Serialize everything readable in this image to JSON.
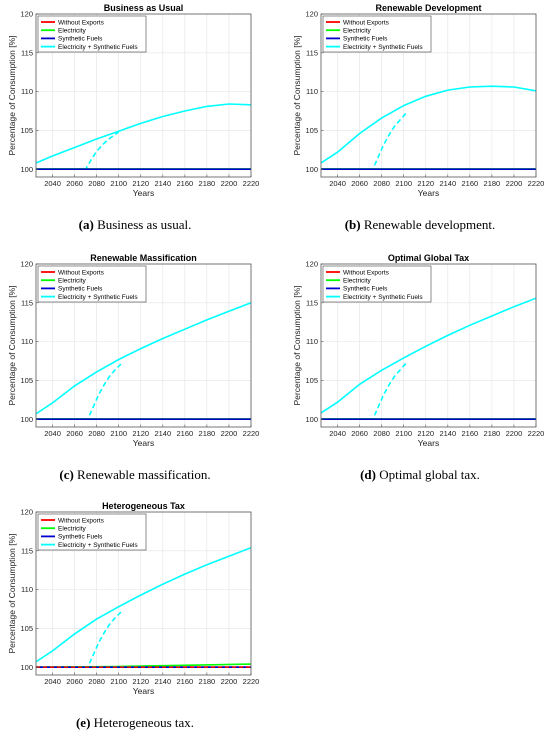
{
  "chart_data": [
    {
      "type": "line",
      "title": "Business as Usual",
      "xlabel": "Years",
      "ylabel": "Percentage of Consumption [%]",
      "xlim": [
        2025,
        2220
      ],
      "ylim": [
        99,
        120
      ],
      "xticks": [
        2040,
        2060,
        2080,
        2100,
        2120,
        2140,
        2160,
        2180,
        2200,
        2220
      ],
      "yticks": [
        100,
        105,
        110,
        115,
        120
      ],
      "legend_position": "top-left",
      "grid": true,
      "series": [
        {
          "name": "Without Exports",
          "color": "#ff0000",
          "style": "solid",
          "x": [
            2025,
            2220
          ],
          "y": [
            100,
            100
          ]
        },
        {
          "name": "Electricity",
          "color": "#00ff00",
          "style": "solid",
          "x": [
            2025,
            2220
          ],
          "y": [
            100.05,
            100.05
          ]
        },
        {
          "name": "Synthetic Fuels",
          "color": "#0000cc",
          "style": "solid",
          "x": [
            2025,
            2220
          ],
          "y": [
            100,
            100
          ]
        },
        {
          "name": "Electricity + Synthetic Fuels",
          "color": "#00ffff",
          "style": "solid",
          "x": [
            2025,
            2040,
            2060,
            2080,
            2100,
            2120,
            2140,
            2160,
            2180,
            2200,
            2220
          ],
          "y": [
            100.8,
            101.7,
            102.8,
            103.9,
            104.9,
            105.9,
            106.8,
            107.5,
            108.1,
            108.4,
            108.3
          ]
        }
      ],
      "dashed": [
        {
          "color": "#00ffff",
          "x": [
            2025,
            2070,
            2075,
            2080,
            2085,
            2090,
            2095,
            2100
          ],
          "y": [
            100,
            100,
            101.2,
            102.3,
            103.1,
            103.8,
            104.3,
            104.8
          ]
        }
      ],
      "caption_letter": "(a)",
      "caption_text": " Business as usual."
    },
    {
      "type": "line",
      "title": "Renewable Development",
      "xlabel": "Years",
      "ylabel": "Percentage of Consumption [%]",
      "xlim": [
        2025,
        2220
      ],
      "ylim": [
        99,
        120
      ],
      "xticks": [
        2040,
        2060,
        2080,
        2100,
        2120,
        2140,
        2160,
        2180,
        2200,
        2220
      ],
      "yticks": [
        100,
        105,
        110,
        115,
        120
      ],
      "legend_position": "top-left",
      "grid": true,
      "series": [
        {
          "name": "Without Exports",
          "color": "#ff0000",
          "style": "solid",
          "x": [
            2025,
            2220
          ],
          "y": [
            100,
            100
          ]
        },
        {
          "name": "Electricity",
          "color": "#00ff00",
          "style": "solid",
          "x": [
            2025,
            2220
          ],
          "y": [
            100.05,
            100.05
          ]
        },
        {
          "name": "Synthetic Fuels",
          "color": "#0000cc",
          "style": "solid",
          "x": [
            2025,
            2220
          ],
          "y": [
            100,
            100
          ]
        },
        {
          "name": "Electricity + Synthetic Fuels",
          "color": "#00ffff",
          "style": "solid",
          "x": [
            2025,
            2040,
            2060,
            2080,
            2100,
            2120,
            2140,
            2160,
            2180,
            2200,
            2220
          ],
          "y": [
            100.8,
            102.2,
            104.6,
            106.6,
            108.2,
            109.4,
            110.2,
            110.6,
            110.7,
            110.6,
            110.1
          ]
        }
      ],
      "dashed": [
        {
          "color": "#00ffff",
          "x": [
            2025,
            2072,
            2077,
            2082,
            2087,
            2092,
            2097,
            2102
          ],
          "y": [
            100,
            100,
            101.6,
            103.2,
            104.5,
            105.6,
            106.4,
            107.2
          ]
        }
      ],
      "caption_letter": "(b)",
      "caption_text": " Renewable development."
    },
    {
      "type": "line",
      "title": "Renewable Massification",
      "xlabel": "Years",
      "ylabel": "Percentage of Consumption [%]",
      "xlim": [
        2025,
        2220
      ],
      "ylim": [
        99,
        120
      ],
      "xticks": [
        2040,
        2060,
        2080,
        2100,
        2120,
        2140,
        2160,
        2180,
        2200,
        2220
      ],
      "yticks": [
        100,
        105,
        110,
        115,
        120
      ],
      "legend_position": "top-left",
      "grid": true,
      "series": [
        {
          "name": "Without Exports",
          "color": "#ff0000",
          "style": "solid",
          "x": [
            2025,
            2220
          ],
          "y": [
            100,
            100
          ]
        },
        {
          "name": "Electricity",
          "color": "#00ff00",
          "style": "solid",
          "x": [
            2025,
            2220
          ],
          "y": [
            100.05,
            100.05
          ]
        },
        {
          "name": "Synthetic Fuels",
          "color": "#0000cc",
          "style": "solid",
          "x": [
            2025,
            2220
          ],
          "y": [
            100,
            100
          ]
        },
        {
          "name": "Electricity + Synthetic Fuels",
          "color": "#00ffff",
          "style": "solid",
          "x": [
            2025,
            2040,
            2060,
            2080,
            2100,
            2120,
            2140,
            2160,
            2180,
            2200,
            2220
          ],
          "y": [
            100.7,
            102.1,
            104.3,
            106.1,
            107.7,
            109.1,
            110.4,
            111.6,
            112.8,
            113.9,
            115.0
          ]
        }
      ],
      "dashed": [
        {
          "color": "#00ffff",
          "x": [
            2025,
            2072,
            2077,
            2082,
            2087,
            2092,
            2097,
            2102
          ],
          "y": [
            100,
            100,
            101.6,
            103.2,
            104.5,
            105.6,
            106.4,
            107.1
          ]
        }
      ],
      "caption_letter": "(c)",
      "caption_text": " Renewable massification."
    },
    {
      "type": "line",
      "title": "Optimal Global Tax",
      "xlabel": "Years",
      "ylabel": "Percentage of Consumption [%]",
      "xlim": [
        2025,
        2220
      ],
      "ylim": [
        99,
        120
      ],
      "xticks": [
        2040,
        2060,
        2080,
        2100,
        2120,
        2140,
        2160,
        2180,
        2200,
        2220
      ],
      "yticks": [
        100,
        105,
        110,
        115,
        120
      ],
      "legend_position": "top-left",
      "grid": true,
      "series": [
        {
          "name": "Without Exports",
          "color": "#ff0000",
          "style": "solid",
          "x": [
            2025,
            2220
          ],
          "y": [
            100,
            100
          ]
        },
        {
          "name": "Electricity",
          "color": "#00ff00",
          "style": "solid",
          "x": [
            2025,
            2220
          ],
          "y": [
            100.05,
            100.05
          ]
        },
        {
          "name": "Synthetic Fuels",
          "color": "#0000cc",
          "style": "solid",
          "x": [
            2025,
            2220
          ],
          "y": [
            100,
            100
          ]
        },
        {
          "name": "Electricity + Synthetic Fuels",
          "color": "#00ffff",
          "style": "solid",
          "x": [
            2025,
            2040,
            2060,
            2080,
            2100,
            2120,
            2140,
            2160,
            2180,
            2200,
            2220
          ],
          "y": [
            100.8,
            102.2,
            104.5,
            106.3,
            107.9,
            109.4,
            110.8,
            112.1,
            113.3,
            114.5,
            115.6
          ]
        }
      ],
      "dashed": [
        {
          "color": "#00ffff",
          "x": [
            2025,
            2072,
            2077,
            2082,
            2087,
            2092,
            2097,
            2102
          ],
          "y": [
            100,
            100,
            101.6,
            103.2,
            104.5,
            105.6,
            106.4,
            107.2
          ]
        }
      ],
      "caption_letter": "(d)",
      "caption_text": " Optimal global tax."
    },
    {
      "type": "line",
      "title": "Heterogeneous Tax",
      "xlabel": "Years",
      "ylabel": "Percentage of Consumption [%]",
      "xlim": [
        2025,
        2220
      ],
      "ylim": [
        99,
        120
      ],
      "xticks": [
        2040,
        2060,
        2080,
        2100,
        2120,
        2140,
        2160,
        2180,
        2200,
        2220
      ],
      "yticks": [
        100,
        105,
        110,
        115,
        120
      ],
      "legend_position": "top-left",
      "grid": true,
      "series": [
        {
          "name": "Without Exports",
          "color": "#ff0000",
          "style": "solid",
          "x": [
            2025,
            2220
          ],
          "y": [
            100,
            100
          ]
        },
        {
          "name": "Electricity",
          "color": "#00ff00",
          "style": "solid",
          "x": [
            2025,
            2100,
            2160,
            2220
          ],
          "y": [
            100,
            100.1,
            100.25,
            100.4
          ]
        },
        {
          "name": "Synthetic Fuels",
          "color": "#0000cc",
          "style": "solid",
          "x": [
            2025,
            2220
          ],
          "y": [
            100,
            100
          ]
        },
        {
          "name": "Electricity + Synthetic Fuels",
          "color": "#00ffff",
          "style": "solid",
          "x": [
            2025,
            2040,
            2060,
            2080,
            2100,
            2120,
            2140,
            2160,
            2180,
            2200,
            2220
          ],
          "y": [
            100.7,
            102.1,
            104.3,
            106.2,
            107.8,
            109.3,
            110.7,
            112.0,
            113.2,
            114.3,
            115.4
          ]
        }
      ],
      "dashed": [
        {
          "color": "#00ffff",
          "x": [
            2025,
            2072,
            2077,
            2082,
            2087,
            2092,
            2097,
            2102
          ],
          "y": [
            100,
            100,
            101.6,
            103.2,
            104.5,
            105.6,
            106.4,
            107.1
          ]
        },
        {
          "color": "#ff0000",
          "x": [
            2025,
            2220
          ],
          "y": [
            100,
            100
          ]
        }
      ],
      "caption_letter": "(e)",
      "caption_text": " Heterogeneous tax."
    }
  ]
}
